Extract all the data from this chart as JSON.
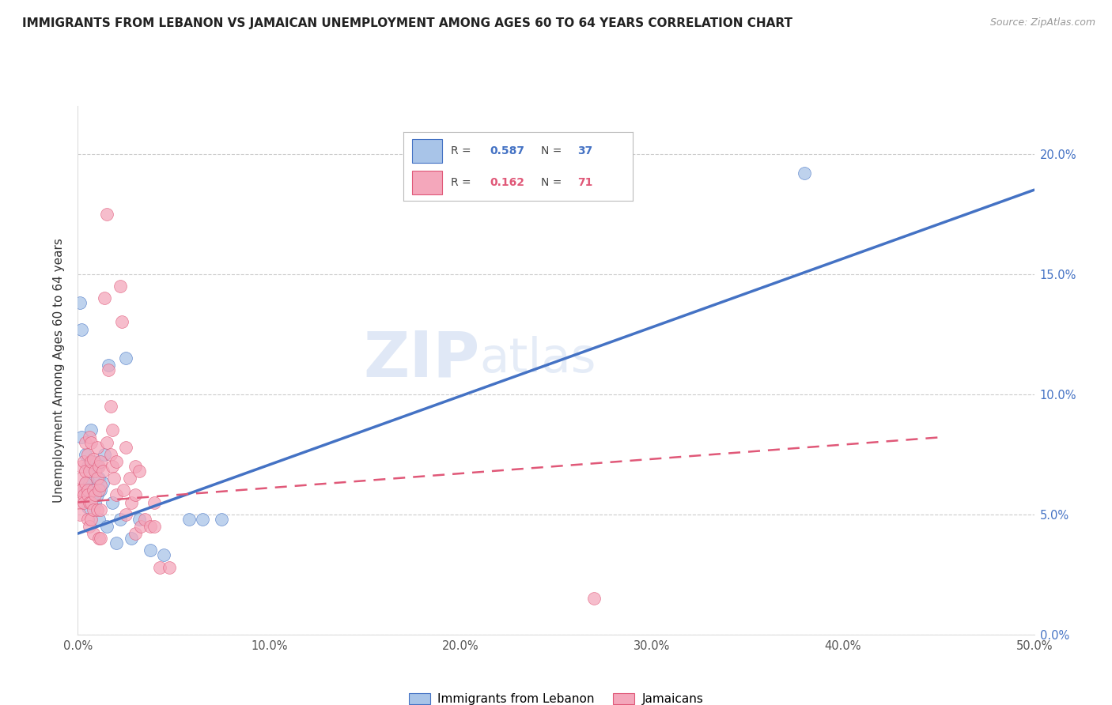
{
  "title": "IMMIGRANTS FROM LEBANON VS JAMAICAN UNEMPLOYMENT AMONG AGES 60 TO 64 YEARS CORRELATION CHART",
  "source": "Source: ZipAtlas.com",
  "ylabel": "Unemployment Among Ages 60 to 64 years",
  "xlim": [
    0,
    0.5
  ],
  "ylim": [
    0.0,
    0.22
  ],
  "ytop": 0.22,
  "legend1_r": "0.587",
  "legend1_n": "37",
  "legend2_r": "0.162",
  "legend2_n": "71",
  "blue_color": "#a8c4e8",
  "pink_color": "#f4a7bb",
  "line_blue": "#4472c4",
  "line_pink": "#e05878",
  "watermark_zip": "ZIP",
  "watermark_atlas": "atlas",
  "blue_scatter_x": [
    0.001,
    0.002,
    0.002,
    0.003,
    0.004,
    0.004,
    0.005,
    0.005,
    0.006,
    0.006,
    0.007,
    0.007,
    0.008,
    0.008,
    0.009,
    0.009,
    0.01,
    0.01,
    0.011,
    0.011,
    0.012,
    0.013,
    0.014,
    0.015,
    0.016,
    0.018,
    0.02,
    0.022,
    0.025,
    0.028,
    0.032,
    0.038,
    0.045,
    0.058,
    0.065,
    0.075,
    0.38
  ],
  "blue_scatter_y": [
    0.138,
    0.082,
    0.127,
    0.06,
    0.063,
    0.075,
    0.07,
    0.053,
    0.063,
    0.058,
    0.06,
    0.085,
    0.072,
    0.06,
    0.068,
    0.055,
    0.07,
    0.058,
    0.065,
    0.048,
    0.06,
    0.063,
    0.075,
    0.045,
    0.112,
    0.055,
    0.038,
    0.048,
    0.115,
    0.04,
    0.048,
    0.035,
    0.033,
    0.048,
    0.048,
    0.048,
    0.192
  ],
  "pink_scatter_x": [
    0.001,
    0.001,
    0.001,
    0.002,
    0.002,
    0.002,
    0.003,
    0.003,
    0.003,
    0.004,
    0.004,
    0.004,
    0.005,
    0.005,
    0.005,
    0.005,
    0.006,
    0.006,
    0.006,
    0.006,
    0.007,
    0.007,
    0.007,
    0.007,
    0.008,
    0.008,
    0.008,
    0.008,
    0.009,
    0.009,
    0.01,
    0.01,
    0.01,
    0.011,
    0.011,
    0.011,
    0.012,
    0.012,
    0.012,
    0.012,
    0.013,
    0.014,
    0.015,
    0.015,
    0.016,
    0.017,
    0.017,
    0.018,
    0.018,
    0.019,
    0.02,
    0.02,
    0.022,
    0.023,
    0.024,
    0.025,
    0.025,
    0.027,
    0.028,
    0.03,
    0.03,
    0.03,
    0.032,
    0.033,
    0.035,
    0.038,
    0.04,
    0.04,
    0.043,
    0.048,
    0.27
  ],
  "pink_scatter_y": [
    0.06,
    0.055,
    0.05,
    0.065,
    0.07,
    0.06,
    0.072,
    0.058,
    0.055,
    0.08,
    0.068,
    0.063,
    0.075,
    0.06,
    0.058,
    0.048,
    0.082,
    0.068,
    0.055,
    0.045,
    0.08,
    0.072,
    0.055,
    0.048,
    0.073,
    0.06,
    0.052,
    0.042,
    0.068,
    0.058,
    0.078,
    0.065,
    0.052,
    0.07,
    0.06,
    0.04,
    0.072,
    0.062,
    0.052,
    0.04,
    0.068,
    0.14,
    0.175,
    0.08,
    0.11,
    0.095,
    0.075,
    0.085,
    0.07,
    0.065,
    0.072,
    0.058,
    0.145,
    0.13,
    0.06,
    0.078,
    0.05,
    0.065,
    0.055,
    0.07,
    0.058,
    0.042,
    0.068,
    0.045,
    0.048,
    0.045,
    0.055,
    0.045,
    0.028,
    0.028,
    0.015
  ],
  "blue_line_x": [
    0.0,
    0.5
  ],
  "blue_line_y": [
    0.042,
    0.185
  ],
  "pink_line_x": [
    0.0,
    0.45
  ],
  "pink_line_y": [
    0.055,
    0.082
  ]
}
